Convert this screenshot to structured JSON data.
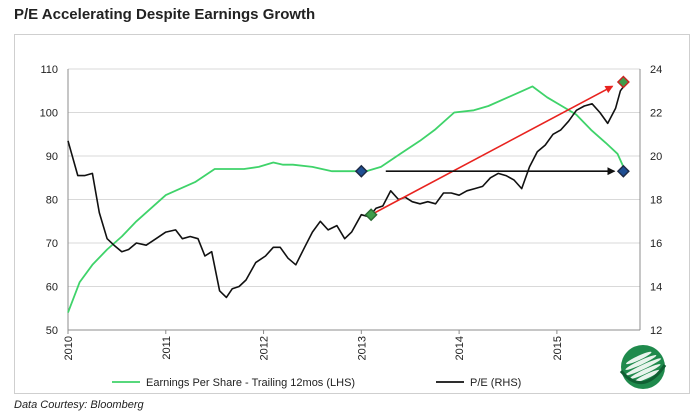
{
  "title": "P/E Accelerating Despite Earnings Growth",
  "source": "Data Courtesy: Bloomberg",
  "colors": {
    "eps": "#3fd36a",
    "pe": "#111111",
    "trend": "#e8231f",
    "flat": "#111111",
    "marker_green": "#3f9c4a",
    "marker_blue": "#1f4f93",
    "marker_red": "#cc2222"
  },
  "chart_data": {
    "type": "line",
    "title": "P/E Accelerating Despite Earnings Growth",
    "x_range": [
      2010.0,
      2015.85
    ],
    "x_ticks": [
      2010,
      2011,
      2012,
      2013,
      2014,
      2015
    ],
    "x_tick_labels": [
      "2010",
      "2011",
      "2012",
      "2013",
      "2014",
      "2015"
    ],
    "y_left": {
      "range": [
        50,
        110
      ],
      "ticks": [
        50,
        60,
        70,
        80,
        90,
        100,
        110
      ]
    },
    "y_right": {
      "range": [
        12,
        24
      ],
      "ticks": [
        12,
        14,
        16,
        18,
        20,
        22,
        24
      ]
    },
    "grid": true,
    "legend_position": "bottom",
    "series": [
      {
        "name": "Earnings Per Share - Trailing 12mos (LHS)",
        "axis": "left",
        "x": [
          2010.0,
          2010.12,
          2010.25,
          2010.4,
          2010.55,
          2010.7,
          2010.85,
          2011.0,
          2011.15,
          2011.3,
          2011.5,
          2011.65,
          2011.8,
          2011.95,
          2012.1,
          2012.2,
          2012.3,
          2012.5,
          2012.7,
          2012.9,
          2013.05,
          2013.2,
          2013.4,
          2013.6,
          2013.75,
          2013.95,
          2014.15,
          2014.3,
          2014.5,
          2014.65,
          2014.75,
          2014.9,
          2015.05,
          2015.2,
          2015.35,
          2015.5,
          2015.62,
          2015.68
        ],
        "y": [
          54,
          61,
          65,
          68.5,
          71.5,
          75,
          78,
          81,
          82.5,
          84,
          87,
          87,
          87,
          87.5,
          88.5,
          88,
          88,
          87.5,
          86.5,
          86.5,
          86.5,
          87.5,
          90.5,
          93.5,
          96,
          100,
          100.5,
          101.5,
          103.5,
          105,
          106,
          103.5,
          101.5,
          99.5,
          96,
          93,
          90.5,
          87.5
        ]
      },
      {
        "name": "P/E (RHS)",
        "axis": "right",
        "x": [
          2010.0,
          2010.1,
          2010.17,
          2010.25,
          2010.32,
          2010.4,
          2010.47,
          2010.55,
          2010.62,
          2010.7,
          2010.8,
          2010.9,
          2011.0,
          2011.1,
          2011.17,
          2011.25,
          2011.33,
          2011.4,
          2011.47,
          2011.55,
          2011.62,
          2011.68,
          2011.75,
          2011.82,
          2011.92,
          2012.02,
          2012.1,
          2012.17,
          2012.25,
          2012.33,
          2012.42,
          2012.5,
          2012.58,
          2012.66,
          2012.75,
          2012.83,
          2012.9,
          2013.0,
          2013.08,
          2013.15,
          2013.22,
          2013.3,
          2013.38,
          2013.45,
          2013.52,
          2013.6,
          2013.68,
          2013.76,
          2013.84,
          2013.92,
          2014.0,
          2014.08,
          2014.16,
          2014.24,
          2014.32,
          2014.4,
          2014.48,
          2014.56,
          2014.64,
          2014.72,
          2014.8,
          2014.88,
          2014.96,
          2015.04,
          2015.12,
          2015.2,
          2015.28,
          2015.36,
          2015.44,
          2015.52,
          2015.6,
          2015.65,
          2015.7
        ],
        "y": [
          20.7,
          19.1,
          19.1,
          19.2,
          17.4,
          16.2,
          15.9,
          15.6,
          15.7,
          16.0,
          15.9,
          16.2,
          16.5,
          16.6,
          16.2,
          16.3,
          16.2,
          15.4,
          15.6,
          13.8,
          13.5,
          13.9,
          14.0,
          14.3,
          15.1,
          15.4,
          15.8,
          15.8,
          15.3,
          15.0,
          15.8,
          16.5,
          17.0,
          16.6,
          16.8,
          16.2,
          16.5,
          17.3,
          17.2,
          17.6,
          17.7,
          18.4,
          18.0,
          18.1,
          17.9,
          17.8,
          17.9,
          17.8,
          18.3,
          18.3,
          18.2,
          18.4,
          18.5,
          18.6,
          19.0,
          19.2,
          19.1,
          18.9,
          18.5,
          19.5,
          20.2,
          20.5,
          21.0,
          21.2,
          21.6,
          22.1,
          22.3,
          22.4,
          22.0,
          21.5,
          22.2,
          23.0,
          23.3
        ]
      }
    ],
    "annotations": [
      {
        "type": "arrow",
        "color": "red",
        "from": {
          "x": 2013.1,
          "y_left": 76.5
        },
        "to": {
          "x": 2015.65,
          "y_left": 107
        }
      },
      {
        "type": "arrow",
        "color": "black",
        "from": {
          "x": 2013.25,
          "y_left": 86.5
        },
        "to": {
          "x": 2015.68,
          "y_left": 86.5
        }
      },
      {
        "type": "marker",
        "shape": "diamond",
        "color": "blue",
        "x": 2013.0,
        "y_left": 86.5
      },
      {
        "type": "marker",
        "shape": "diamond",
        "color": "blue",
        "x": 2015.68,
        "y_left": 86.5
      },
      {
        "type": "marker",
        "shape": "diamond",
        "color": "green",
        "x": 2013.1,
        "y_left": 76.5
      },
      {
        "type": "marker",
        "shape": "diamond",
        "color": "green",
        "x": 2015.68,
        "y_left": 107
      }
    ]
  }
}
